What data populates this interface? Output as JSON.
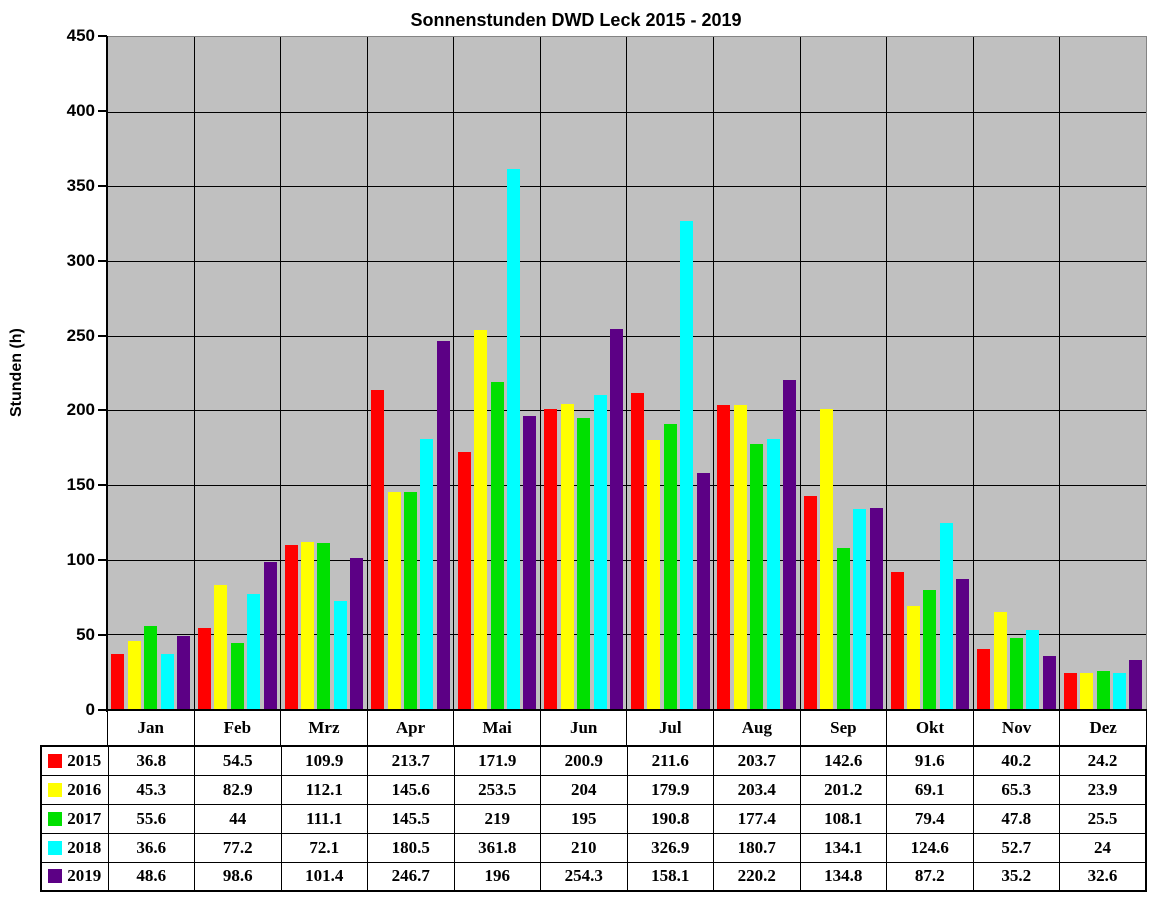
{
  "title": "Sonnenstunden DWD Leck 2015 - 2019",
  "y_axis": {
    "label": "Stunden (h)"
  },
  "chart_data": {
    "type": "bar",
    "title": "Sonnenstunden DWD Leck 2015 - 2019",
    "xlabel": "",
    "ylabel": "Stunden (h)",
    "ylim": [
      0,
      450
    ],
    "ytick_step": 50,
    "grid": true,
    "plot_background": "#c0c0c0",
    "gridline_color": "#000000",
    "legend_position": "table-left-column",
    "categories": [
      "Jan",
      "Feb",
      "Mrz",
      "Apr",
      "Mai",
      "Jun",
      "Jul",
      "Aug",
      "Sep",
      "Okt",
      "Nov",
      "Dez"
    ],
    "series": [
      {
        "name": "2015",
        "color": "#ff0000",
        "values": [
          36.8,
          54.5,
          109.9,
          213.7,
          171.9,
          200.9,
          211.6,
          203.7,
          142.6,
          91.6,
          40.2,
          24.2
        ]
      },
      {
        "name": "2016",
        "color": "#ffff00",
        "values": [
          45.3,
          82.9,
          112.1,
          145.6,
          253.5,
          204,
          179.9,
          203.4,
          201.2,
          69.1,
          65.3,
          23.9
        ]
      },
      {
        "name": "2017",
        "color": "#00e000",
        "values": [
          55.6,
          44,
          111.1,
          145.5,
          219,
          195,
          190.8,
          177.4,
          108.1,
          79.4,
          47.8,
          25.5
        ]
      },
      {
        "name": "2018",
        "color": "#00ffff",
        "values": [
          36.6,
          77.2,
          72.1,
          180.5,
          361.8,
          210,
          326.9,
          180.7,
          134.1,
          124.6,
          52.7,
          24
        ]
      },
      {
        "name": "2019",
        "color": "#5c0085",
        "values": [
          48.6,
          98.6,
          101.4,
          246.7,
          196,
          254.3,
          158.1,
          220.2,
          134.8,
          87.2,
          35.2,
          32.6
        ]
      }
    ]
  }
}
